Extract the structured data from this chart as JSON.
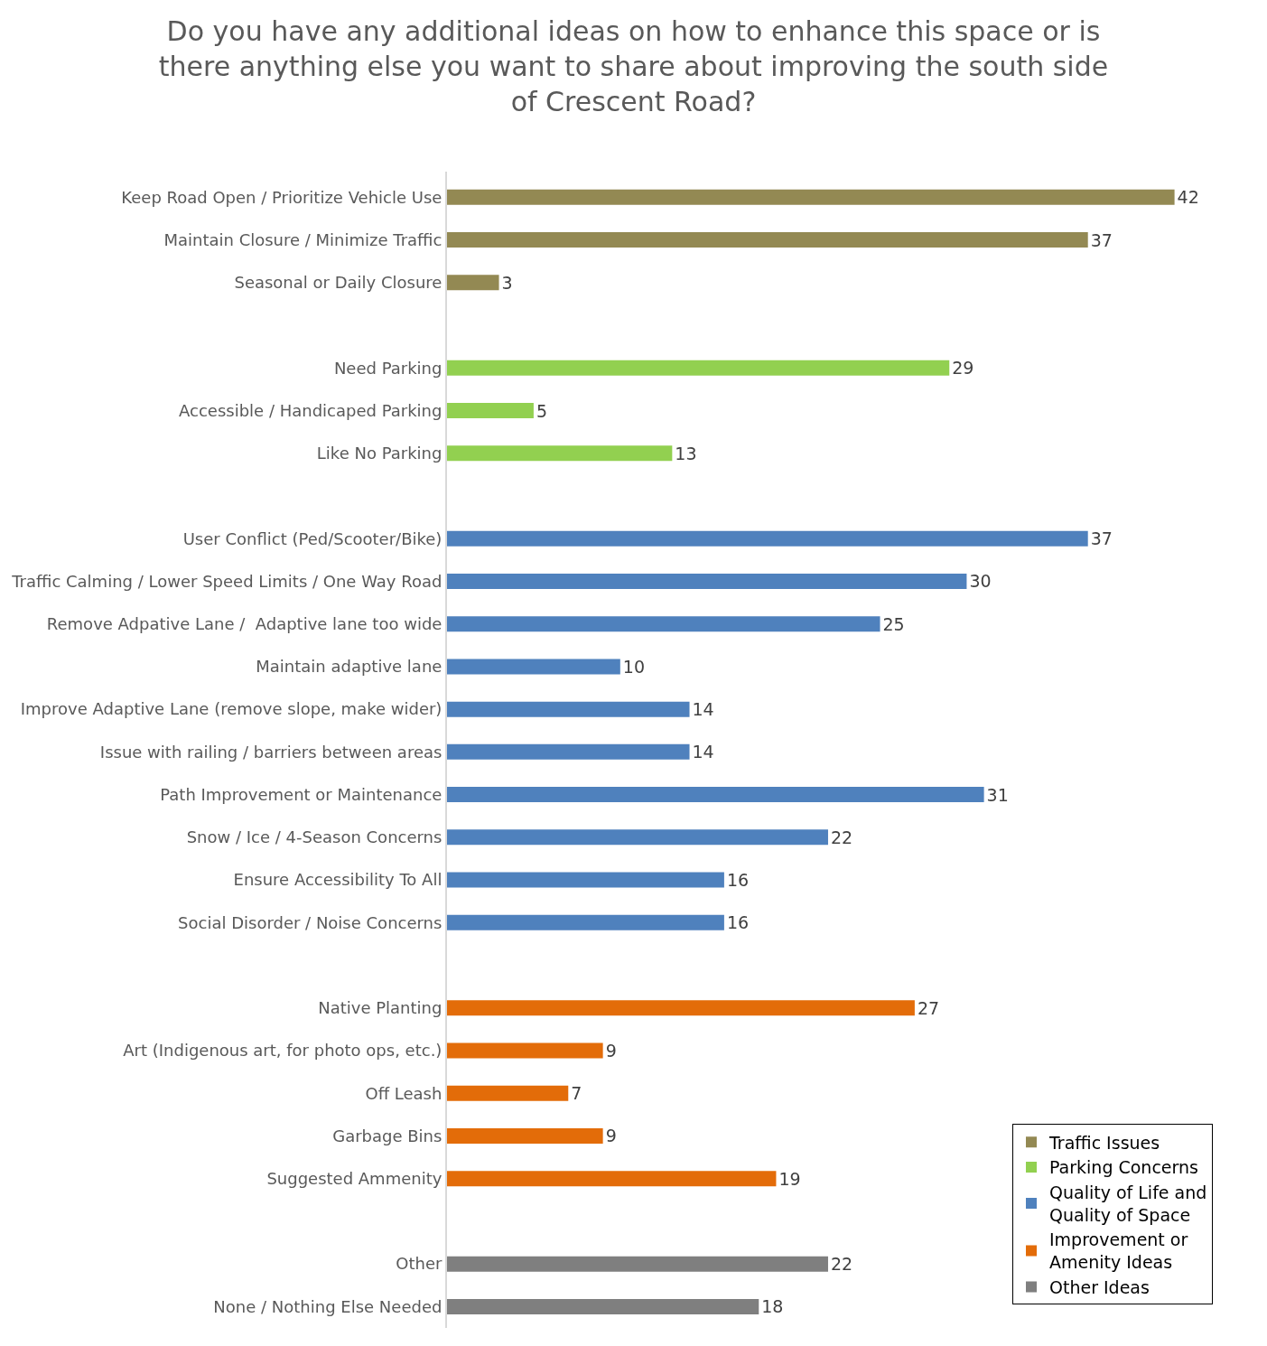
{
  "chart_data": {
    "type": "bar",
    "orientation": "horizontal",
    "title": "Do you have any additional ideas on how to enhance this space or is there anything else you want to share about improving the south side of Crescent Road?",
    "categories": [
      "Keep Road Open / Prioritize Vehicle Use",
      "Maintain Closure / Minimize Traffic",
      "Seasonal or Daily Closure",
      null,
      "Need Parking",
      "Accessible / Handicaped Parking",
      "Like No Parking",
      null,
      "User Conflict (Ped/Scooter/Bike)",
      "Traffic Calming / Lower Speed Limits / One Way Road",
      "Remove Adpative Lane /  Adaptive lane too wide",
      "Maintain adaptive lane",
      "Improve Adaptive Lane (remove slope, make wider)",
      "Issue with railing / barriers between areas",
      "Path Improvement or Maintenance",
      "Snow / Ice / 4-Season Concerns",
      "Ensure Accessibility To All",
      "Social Disorder / Noise Concerns",
      null,
      "Native Planting",
      "Art (Indigenous art, for photo ops, etc.)",
      "Off Leash",
      "Garbage Bins",
      "Suggested Ammenity",
      null,
      "Other",
      "None / Nothing Else Needed"
    ],
    "series": [
      {
        "name": "Traffic Issues",
        "color": "#938953",
        "values": [
          42,
          37,
          3,
          null,
          null,
          null,
          null,
          null,
          null,
          null,
          null,
          null,
          null,
          null,
          null,
          null,
          null,
          null,
          null,
          null,
          null,
          null,
          null,
          null,
          null,
          null,
          null
        ]
      },
      {
        "name": "Parking Concerns",
        "color": "#92d050",
        "values": [
          null,
          null,
          null,
          null,
          29,
          5,
          13,
          null,
          null,
          null,
          null,
          null,
          null,
          null,
          null,
          null,
          null,
          null,
          null,
          null,
          null,
          null,
          null,
          null,
          null,
          null,
          null
        ]
      },
      {
        "name": "Quality of Life and Quality of Space",
        "color": "#4f81bd",
        "values": [
          null,
          null,
          null,
          null,
          null,
          null,
          null,
          null,
          37,
          30,
          25,
          10,
          14,
          14,
          31,
          22,
          16,
          16,
          null,
          null,
          null,
          null,
          null,
          null,
          null,
          null,
          null
        ]
      },
      {
        "name": "Improvement or Amenity Ideas",
        "color": "#e36c09",
        "values": [
          null,
          null,
          null,
          null,
          null,
          null,
          null,
          null,
          null,
          null,
          null,
          null,
          null,
          null,
          null,
          null,
          null,
          null,
          null,
          27,
          9,
          7,
          9,
          19,
          null,
          null,
          null
        ]
      },
      {
        "name": "Other Ideas",
        "color": "#7f7f7f",
        "values": [
          null,
          null,
          null,
          null,
          null,
          null,
          null,
          null,
          null,
          null,
          null,
          null,
          null,
          null,
          null,
          null,
          null,
          null,
          null,
          null,
          null,
          null,
          null,
          null,
          null,
          22,
          18
        ]
      }
    ],
    "data_labels": true,
    "legend": "bottom right"
  }
}
